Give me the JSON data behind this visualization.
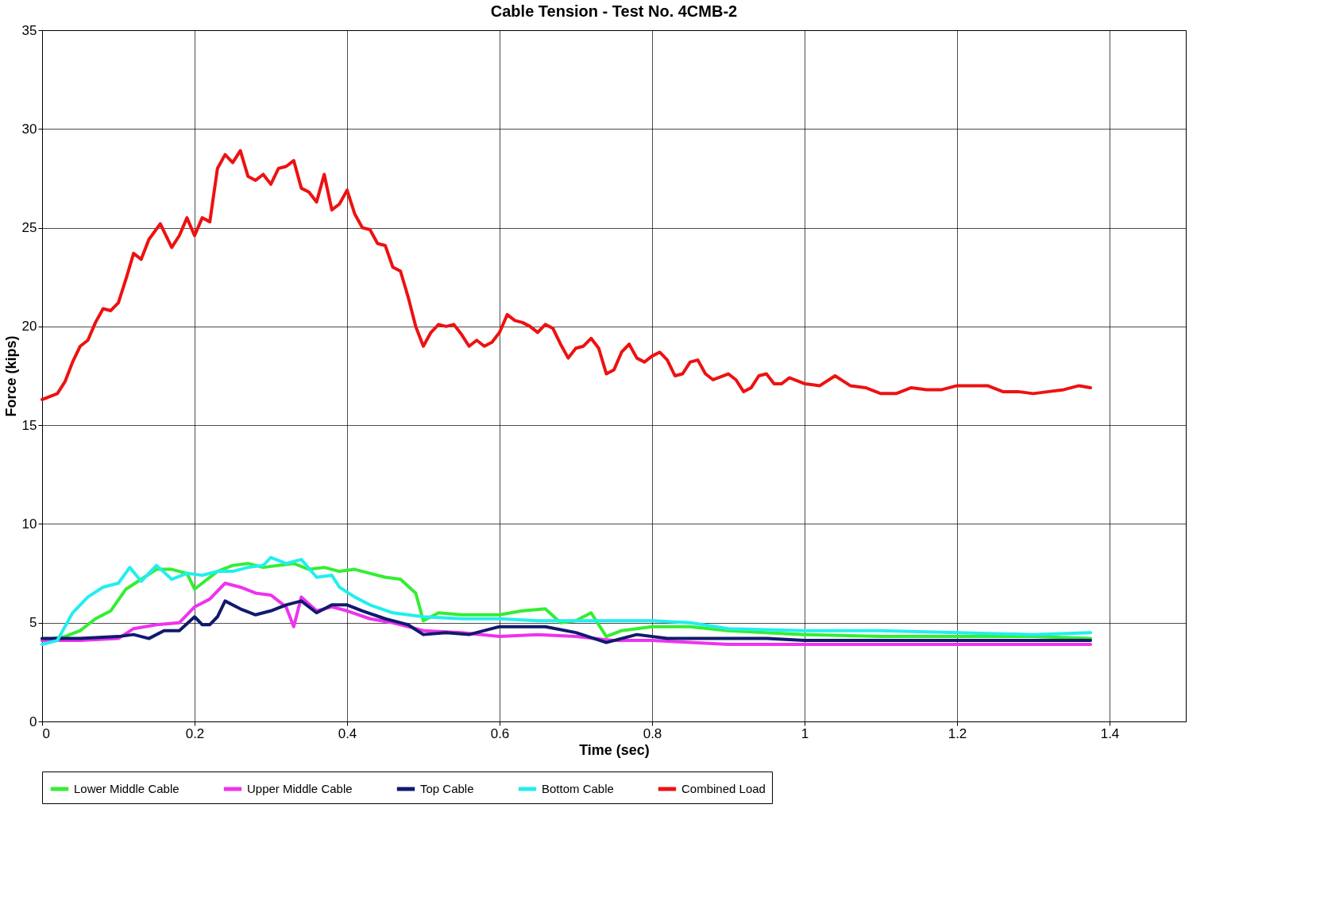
{
  "chart_data": {
    "type": "line",
    "title": "Cable Tension - Test No. 4CMB-2",
    "xlabel": "Time (sec)",
    "ylabel": "Force (kips)",
    "xlim": [
      0,
      1.5
    ],
    "xticks": [
      0,
      0.2,
      0.4,
      0.6,
      0.8,
      1,
      1.2,
      1.4
    ],
    "ylim": [
      0,
      35
    ],
    "yticks": [
      0,
      5,
      10,
      15,
      20,
      25,
      30,
      35
    ],
    "grid": true,
    "legend": "bottom",
    "marker": "none",
    "line_style": "solid",
    "series": [
      {
        "name": "Lower Middle Cable",
        "color": "#33ee33",
        "x": [
          0,
          0.03,
          0.05,
          0.07,
          0.09,
          0.11,
          0.13,
          0.15,
          0.17,
          0.19,
          0.2,
          0.21,
          0.23,
          0.25,
          0.27,
          0.29,
          0.31,
          0.33,
          0.35,
          0.37,
          0.39,
          0.41,
          0.43,
          0.45,
          0.47,
          0.49,
          0.5,
          0.52,
          0.55,
          0.6,
          0.63,
          0.66,
          0.68,
          0.7,
          0.72,
          0.74,
          0.76,
          0.8,
          0.85,
          0.9,
          1.0,
          1.1,
          1.2,
          1.3,
          1.375
        ],
        "values": [
          4.1,
          4.3,
          4.6,
          5.2,
          5.6,
          6.7,
          7.2,
          7.7,
          7.7,
          7.5,
          6.7,
          7.0,
          7.6,
          7.9,
          8.0,
          7.8,
          7.9,
          8.0,
          7.7,
          7.8,
          7.6,
          7.7,
          7.5,
          7.3,
          7.2,
          6.5,
          5.1,
          5.5,
          5.4,
          5.4,
          5.6,
          5.7,
          5.0,
          5.1,
          5.5,
          4.3,
          4.6,
          4.8,
          4.8,
          4.6,
          4.4,
          4.3,
          4.3,
          4.3,
          4.2
        ]
      },
      {
        "name": "Upper Middle Cable",
        "color": "#ee33ee",
        "x": [
          0,
          0.05,
          0.1,
          0.12,
          0.15,
          0.18,
          0.2,
          0.22,
          0.24,
          0.26,
          0.28,
          0.3,
          0.32,
          0.33,
          0.34,
          0.36,
          0.38,
          0.4,
          0.43,
          0.46,
          0.5,
          0.55,
          0.6,
          0.65,
          0.7,
          0.75,
          0.8,
          0.85,
          0.9,
          1.0,
          1.1,
          1.2,
          1.3,
          1.375
        ],
        "values": [
          4.1,
          4.1,
          4.2,
          4.7,
          4.9,
          5.0,
          5.8,
          6.2,
          7.0,
          6.8,
          6.5,
          6.4,
          5.8,
          4.8,
          6.3,
          5.6,
          5.8,
          5.6,
          5.2,
          5.0,
          4.6,
          4.5,
          4.3,
          4.4,
          4.3,
          4.1,
          4.1,
          4.0,
          3.9,
          3.9,
          3.9,
          3.9,
          3.9,
          3.9
        ]
      },
      {
        "name": "Top Cable",
        "color": "#101a6e",
        "x": [
          0,
          0.05,
          0.1,
          0.12,
          0.14,
          0.16,
          0.18,
          0.2,
          0.21,
          0.22,
          0.23,
          0.24,
          0.26,
          0.28,
          0.3,
          0.32,
          0.34,
          0.36,
          0.38,
          0.4,
          0.42,
          0.45,
          0.48,
          0.5,
          0.53,
          0.56,
          0.6,
          0.63,
          0.66,
          0.7,
          0.74,
          0.78,
          0.82,
          0.86,
          0.9,
          0.95,
          1.0,
          1.1,
          1.2,
          1.3,
          1.375
        ],
        "values": [
          4.2,
          4.2,
          4.3,
          4.4,
          4.2,
          4.6,
          4.6,
          5.3,
          4.9,
          4.9,
          5.3,
          6.1,
          5.7,
          5.4,
          5.6,
          5.9,
          6.1,
          5.5,
          5.9,
          5.9,
          5.6,
          5.2,
          4.9,
          4.4,
          4.5,
          4.4,
          4.8,
          4.8,
          4.8,
          4.5,
          4.0,
          4.4,
          4.2,
          4.2,
          4.2,
          4.2,
          4.1,
          4.1,
          4.1,
          4.1,
          4.1
        ]
      },
      {
        "name": "Bottom Cable",
        "color": "#22eeee",
        "x": [
          0,
          0.02,
          0.04,
          0.06,
          0.08,
          0.1,
          0.115,
          0.13,
          0.15,
          0.17,
          0.19,
          0.21,
          0.23,
          0.25,
          0.27,
          0.29,
          0.3,
          0.32,
          0.34,
          0.36,
          0.38,
          0.39,
          0.41,
          0.43,
          0.46,
          0.5,
          0.55,
          0.6,
          0.65,
          0.7,
          0.75,
          0.8,
          0.85,
          0.9,
          1.0,
          1.1,
          1.2,
          1.3,
          1.375
        ],
        "values": [
          3.9,
          4.1,
          5.5,
          6.3,
          6.8,
          7.0,
          7.8,
          7.1,
          7.9,
          7.2,
          7.5,
          7.4,
          7.6,
          7.6,
          7.8,
          7.9,
          8.3,
          8.0,
          8.2,
          7.3,
          7.4,
          6.8,
          6.3,
          5.9,
          5.5,
          5.3,
          5.2,
          5.2,
          5.1,
          5.1,
          5.1,
          5.1,
          5.0,
          4.7,
          4.6,
          4.6,
          4.5,
          4.4,
          4.5
        ]
      },
      {
        "name": "Combined Load",
        "color": "#ee1111",
        "x": [
          0,
          0.02,
          0.03,
          0.04,
          0.05,
          0.06,
          0.07,
          0.08,
          0.09,
          0.1,
          0.11,
          0.12,
          0.13,
          0.14,
          0.155,
          0.17,
          0.18,
          0.19,
          0.2,
          0.21,
          0.22,
          0.23,
          0.24,
          0.25,
          0.26,
          0.27,
          0.28,
          0.29,
          0.3,
          0.31,
          0.32,
          0.33,
          0.34,
          0.35,
          0.36,
          0.37,
          0.38,
          0.39,
          0.4,
          0.41,
          0.42,
          0.43,
          0.44,
          0.45,
          0.46,
          0.47,
          0.48,
          0.49,
          0.5,
          0.51,
          0.52,
          0.53,
          0.54,
          0.55,
          0.56,
          0.57,
          0.58,
          0.59,
          0.6,
          0.61,
          0.62,
          0.63,
          0.64,
          0.65,
          0.66,
          0.67,
          0.68,
          0.69,
          0.7,
          0.71,
          0.72,
          0.73,
          0.74,
          0.75,
          0.76,
          0.77,
          0.78,
          0.79,
          0.8,
          0.81,
          0.82,
          0.83,
          0.84,
          0.85,
          0.86,
          0.87,
          0.88,
          0.9,
          0.91,
          0.92,
          0.93,
          0.94,
          0.95,
          0.96,
          0.97,
          0.98,
          1.0,
          1.02,
          1.04,
          1.06,
          1.08,
          1.1,
          1.12,
          1.14,
          1.16,
          1.18,
          1.2,
          1.22,
          1.24,
          1.26,
          1.28,
          1.3,
          1.32,
          1.34,
          1.36,
          1.375
        ],
        "values": [
          16.3,
          16.6,
          17.2,
          18.2,
          19.0,
          19.3,
          20.2,
          20.9,
          20.8,
          21.2,
          22.4,
          23.7,
          23.4,
          24.4,
          25.2,
          24.0,
          24.6,
          25.5,
          24.6,
          25.5,
          25.3,
          28.0,
          28.7,
          28.3,
          28.9,
          27.6,
          27.4,
          27.7,
          27.2,
          28.0,
          28.1,
          28.4,
          27.0,
          26.8,
          26.3,
          27.7,
          25.9,
          26.2,
          26.9,
          25.7,
          25.0,
          24.9,
          24.2,
          24.1,
          23.0,
          22.8,
          21.5,
          20.0,
          19.0,
          19.7,
          20.1,
          20.0,
          20.1,
          19.6,
          19.0,
          19.3,
          19.0,
          19.2,
          19.7,
          20.6,
          20.3,
          20.2,
          20.0,
          19.7,
          20.1,
          19.9,
          19.1,
          18.4,
          18.9,
          19.0,
          19.4,
          18.9,
          17.6,
          17.8,
          18.7,
          19.1,
          18.4,
          18.2,
          18.5,
          18.7,
          18.3,
          17.5,
          17.6,
          18.2,
          18.3,
          17.6,
          17.3,
          17.6,
          17.3,
          16.7,
          16.9,
          17.5,
          17.6,
          17.1,
          17.1,
          17.4,
          17.1,
          17.0,
          17.5,
          17.0,
          16.9,
          16.6,
          16.6,
          16.9,
          16.8,
          16.8,
          17.0,
          17.0,
          17.0,
          16.7,
          16.7,
          16.6,
          16.7,
          16.8,
          17.0,
          16.9
        ]
      }
    ]
  }
}
